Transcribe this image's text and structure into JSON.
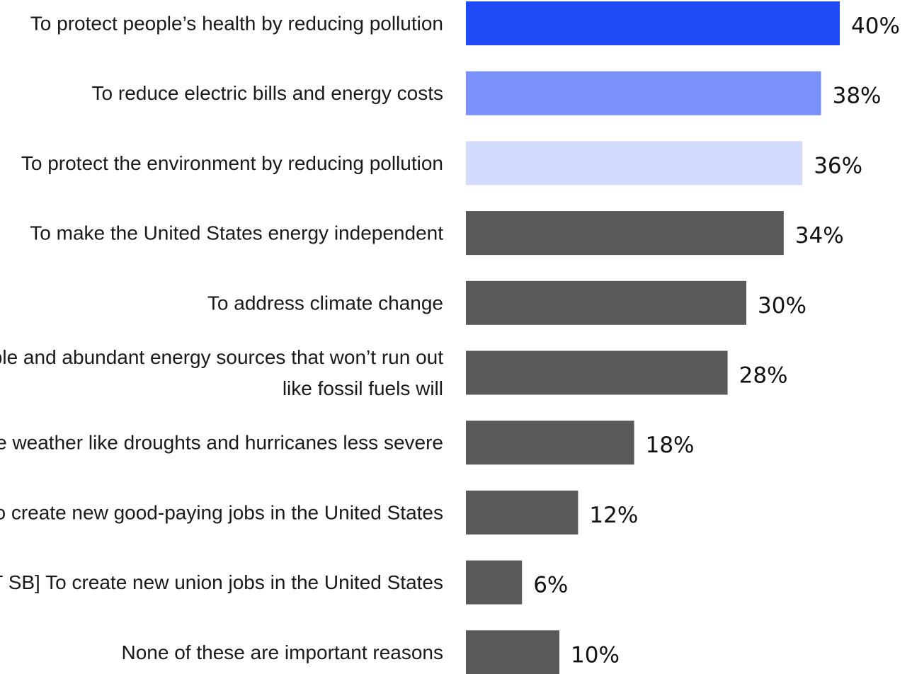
{
  "chart_data": {
    "type": "bar",
    "orientation": "horizontal",
    "title": "",
    "xlabel": "",
    "ylabel": "",
    "xlim": [
      0,
      40
    ],
    "grid": false,
    "legend": "none",
    "value_suffix": "%",
    "categories": [
      "To protect people’s health by reducing pollution",
      "To reduce electric bills and energy costs",
      "To protect the environment by reducing pollution",
      "To make the United States energy independent",
      "To address climate change",
      "To use renewable and abundant energy sources that won’t run out like fossil fuels will",
      "To make extreme weather like droughts and hurricanes less severe",
      "To create new good-paying jobs in the United States",
      "[SPLIT SB] To create new union jobs in the United States",
      "None of these are important reasons"
    ],
    "label_lines": [
      [
        "To protect people’s health by reducing pollution"
      ],
      [
        "To reduce electric bills and energy costs"
      ],
      [
        "To protect the environment by reducing pollution"
      ],
      [
        "To make the United States energy independent"
      ],
      [
        "To address climate change"
      ],
      [
        "To use renewable and abundant energy sources that won’t run out",
        "like fossil fuels will"
      ],
      [
        "To make extreme weather like droughts and hurricanes less severe"
      ],
      [
        "To create new good-paying jobs in the United States"
      ],
      [
        "[SPLIT SB] To create new union jobs in the United States"
      ],
      [
        "None of these are important reasons"
      ]
    ],
    "values": [
      40,
      38,
      36,
      34,
      30,
      28,
      18,
      12,
      6,
      10
    ],
    "colors": [
      "#1f4af5",
      "#7a92f9",
      "#d3dbfd",
      "#595959",
      "#595959",
      "#595959",
      "#595959",
      "#595959",
      "#595959",
      "#595959"
    ]
  }
}
